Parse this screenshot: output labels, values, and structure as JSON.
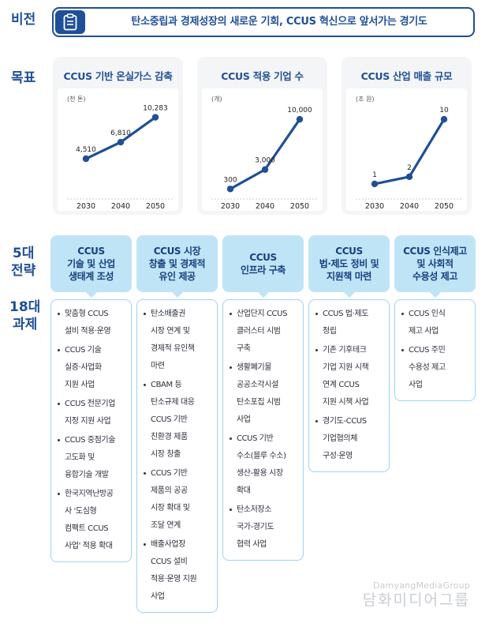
{
  "labels": {
    "vision": "비전",
    "targets": "목표",
    "strategies": "5대\n전략",
    "tasks": "18대\n과제"
  },
  "vision": {
    "icon": "clipboard-icon",
    "text": "탄소중립과 경제성장의 새로운 기회, CCUS 혁신으로 앞서가는 경기도"
  },
  "targets": [
    {
      "title": "CCUS 기반 온실가스 감축",
      "unit": "(천 톤)"
    },
    {
      "title": "CCUS 적용 기업 수",
      "unit": "(개)"
    },
    {
      "title": "CCUS 산업 매출 규모",
      "unit": "(조 원)"
    }
  ],
  "chart_data": [
    {
      "type": "line",
      "title": "CCUS 기반 온실가스 감축",
      "ylabel": "(천 톤)",
      "categories": [
        "2030",
        "2040",
        "2050"
      ],
      "values": [
        4510,
        6810,
        10283
      ],
      "data_labels": [
        "4,510",
        "6,810",
        "10,283"
      ],
      "ylim": [
        0,
        11000
      ],
      "color": "#1f4f96"
    },
    {
      "type": "line",
      "title": "CCUS 적용 기업 수",
      "ylabel": "(개)",
      "categories": [
        "2030",
        "2040",
        "2050"
      ],
      "values": [
        300,
        3000,
        10000
      ],
      "data_labels": [
        "300",
        "3,000",
        "10,000"
      ],
      "ylim": [
        0,
        11000
      ],
      "color": "#1f4f96"
    },
    {
      "type": "line",
      "title": "CCUS 산업 매출 규모",
      "ylabel": "(조 원)",
      "categories": [
        "2030",
        "2040",
        "2050"
      ],
      "values": [
        1,
        2,
        10
      ],
      "data_labels": [
        "1",
        "2",
        "10"
      ],
      "ylim": [
        0,
        11
      ],
      "color": "#1f4f96"
    }
  ],
  "strategies": [
    {
      "title": "CCUS\n기술 및 산업\n생태계 조성",
      "tasks": [
        "맞춤형 CCUS\n설비 적용·운영",
        "CCUS 기술\n실증·사업화\n지원 사업",
        "CCUS 전문기업\n지정 지원 사업",
        "CCUS 중점기술\n고도화 및\n융합기술 개발",
        "한국지역난방공\n사 '도심형\n컴팩트 CCUS\n사업' 적용 확대"
      ]
    },
    {
      "title": "CCUS 시장\n창출 및 경제적\n유인 제공",
      "tasks": [
        "탄소배출권\n시장 연계 및\n경제적 유인책\n마련",
        "CBAM 등\n탄소규제 대응\nCCUS 기반\n친환경 제품\n시장 창출",
        "CCUS 기반\n제품의 공공\n시장 확대 및\n조달 연계",
        "배출사업장\nCCUS 설비\n적용·운영 지원\n사업"
      ]
    },
    {
      "title": "CCUS\n인프라 구축",
      "tasks": [
        "산업단지 CCUS\n클러스터 시범\n구축",
        "생활폐기물\n공공소각시설\n탄소포집 시범\n사업",
        "CCUS 기반\n수소(블루 수소)\n생산-활용 시장\n확대",
        "탄소저장소\n국가-경기도\n협력 사업"
      ]
    },
    {
      "title": "CCUS\n법·제도 정비 및\n지원책 마련",
      "tasks": [
        "CCUS 법·제도\n정립",
        "기존 기후테크\n기업 지원 시책\n연계 CCUS\n지원 시책 사업",
        "경기도-CCUS\n기업협의체\n구성·운영"
      ]
    },
    {
      "title": "CCUS 인식제고\n및 사회적\n수용성 제고",
      "tasks": [
        "CCUS 인식\n제고 사업",
        "CCUS 주민\n수용성 제고\n사업"
      ]
    }
  ],
  "watermark": {
    "en": "DamyangMediaGroup",
    "ko": "담화미디어그룹"
  }
}
